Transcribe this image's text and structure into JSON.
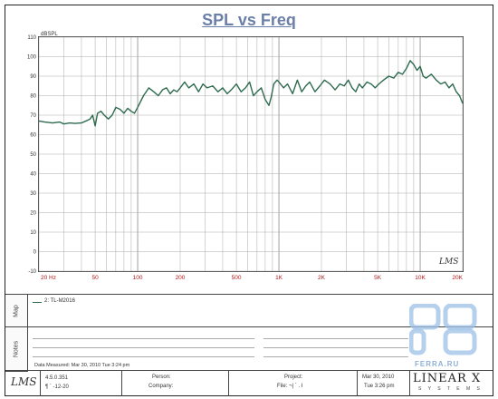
{
  "chart_data": {
    "type": "line",
    "title": "SPL vs Freq",
    "ylabel": "dBSPL",
    "xlabel": "",
    "xscale": "log",
    "xlim": [
      20,
      20000
    ],
    "ylim": [
      -10,
      110
    ],
    "yticks": [
      "110",
      "100",
      "90",
      "80",
      "70",
      "60",
      "50",
      "40",
      "30",
      "20",
      "10",
      "0",
      "-10"
    ],
    "xticks": [
      {
        "value": 20,
        "label": "20  Hz"
      },
      {
        "value": 50,
        "label": "50"
      },
      {
        "value": 100,
        "label": "100"
      },
      {
        "value": 200,
        "label": "200"
      },
      {
        "value": 500,
        "label": "500"
      },
      {
        "value": 1000,
        "label": "1K"
      },
      {
        "value": 2000,
        "label": "2K"
      },
      {
        "value": 5000,
        "label": "5K"
      },
      {
        "value": 10000,
        "label": "10K"
      },
      {
        "value": 20000,
        "label": "20K"
      }
    ],
    "grid": true,
    "series": [
      {
        "name": "2: TL-M2016",
        "color": "#2e6b4f",
        "points": [
          [
            20,
            67
          ],
          [
            22,
            66.5
          ],
          [
            25,
            66
          ],
          [
            28,
            66.5
          ],
          [
            30,
            65.5
          ],
          [
            33,
            66
          ],
          [
            36,
            65.8
          ],
          [
            40,
            66
          ],
          [
            43,
            67
          ],
          [
            46,
            68
          ],
          [
            48,
            70
          ],
          [
            50,
            64.5
          ],
          [
            52,
            71
          ],
          [
            55,
            72
          ],
          [
            58,
            70
          ],
          [
            62,
            68
          ],
          [
            66,
            70
          ],
          [
            70,
            74
          ],
          [
            75,
            73
          ],
          [
            80,
            71
          ],
          [
            85,
            73.5
          ],
          [
            90,
            72
          ],
          [
            95,
            71
          ],
          [
            100,
            74
          ],
          [
            110,
            80
          ],
          [
            120,
            84
          ],
          [
            130,
            82
          ],
          [
            140,
            80
          ],
          [
            150,
            83
          ],
          [
            160,
            84
          ],
          [
            170,
            81
          ],
          [
            180,
            83
          ],
          [
            190,
            82
          ],
          [
            200,
            84
          ],
          [
            215,
            87
          ],
          [
            230,
            84
          ],
          [
            250,
            86
          ],
          [
            270,
            82
          ],
          [
            290,
            86
          ],
          [
            310,
            84
          ],
          [
            340,
            85
          ],
          [
            370,
            82
          ],
          [
            400,
            84
          ],
          [
            430,
            81
          ],
          [
            460,
            83
          ],
          [
            500,
            86
          ],
          [
            540,
            82
          ],
          [
            580,
            84
          ],
          [
            620,
            87
          ],
          [
            660,
            80
          ],
          [
            700,
            82
          ],
          [
            750,
            84
          ],
          [
            800,
            78
          ],
          [
            850,
            75
          ],
          [
            880,
            79
          ],
          [
            920,
            86
          ],
          [
            970,
            88
          ],
          [
            1000,
            87
          ],
          [
            1080,
            84
          ],
          [
            1150,
            86
          ],
          [
            1250,
            81
          ],
          [
            1350,
            88
          ],
          [
            1450,
            82
          ],
          [
            1550,
            85
          ],
          [
            1650,
            87
          ],
          [
            1800,
            82
          ],
          [
            1950,
            85
          ],
          [
            2100,
            88
          ],
          [
            2300,
            86
          ],
          [
            2500,
            83
          ],
          [
            2700,
            86
          ],
          [
            2900,
            85
          ],
          [
            3100,
            88
          ],
          [
            3300,
            84
          ],
          [
            3500,
            82
          ],
          [
            3700,
            86
          ],
          [
            3900,
            84
          ],
          [
            4200,
            87
          ],
          [
            4500,
            86
          ],
          [
            4800,
            84
          ],
          [
            5100,
            86
          ],
          [
            5500,
            88
          ],
          [
            6000,
            90
          ],
          [
            6500,
            89
          ],
          [
            7000,
            92
          ],
          [
            7500,
            91
          ],
          [
            8000,
            94
          ],
          [
            8500,
            98
          ],
          [
            9000,
            96
          ],
          [
            9500,
            93
          ],
          [
            10000,
            95
          ],
          [
            10500,
            90
          ],
          [
            11000,
            89
          ],
          [
            12000,
            91
          ],
          [
            13000,
            88
          ],
          [
            14000,
            86
          ],
          [
            15000,
            87
          ],
          [
            16000,
            84
          ],
          [
            17000,
            86
          ],
          [
            18000,
            82
          ],
          [
            19000,
            80
          ],
          [
            20000,
            76
          ]
        ]
      }
    ]
  },
  "side": {
    "map_label": "Map",
    "notes_label": "Notes"
  },
  "legend": {
    "entry": "2: TL-M2016"
  },
  "notes": {
    "data_measured": "Data Measured: Mar 30, 2010  Tue  3:24 pm"
  },
  "footer": {
    "logo": "LMS",
    "version": "4.5.0.351",
    "version_sub": "¶   ` -12-20",
    "person_label": "Person:",
    "company_label": "Company:",
    "project_label": "Project:",
    "file_label": "File: ¬| ` . ł",
    "date": "Mar 30, 2010",
    "time": "Tue  3:26 pm",
    "brand": "LINEAR X",
    "brand_sub": "S Y S T E M S"
  },
  "plot_logo": "LMS",
  "watermark": "FERRA.RU",
  "colors": {
    "curve": "#2e6b4f",
    "grid": "#a9a9a9",
    "x_tick_labels": "#b01818",
    "title": "#6b7fa8"
  }
}
